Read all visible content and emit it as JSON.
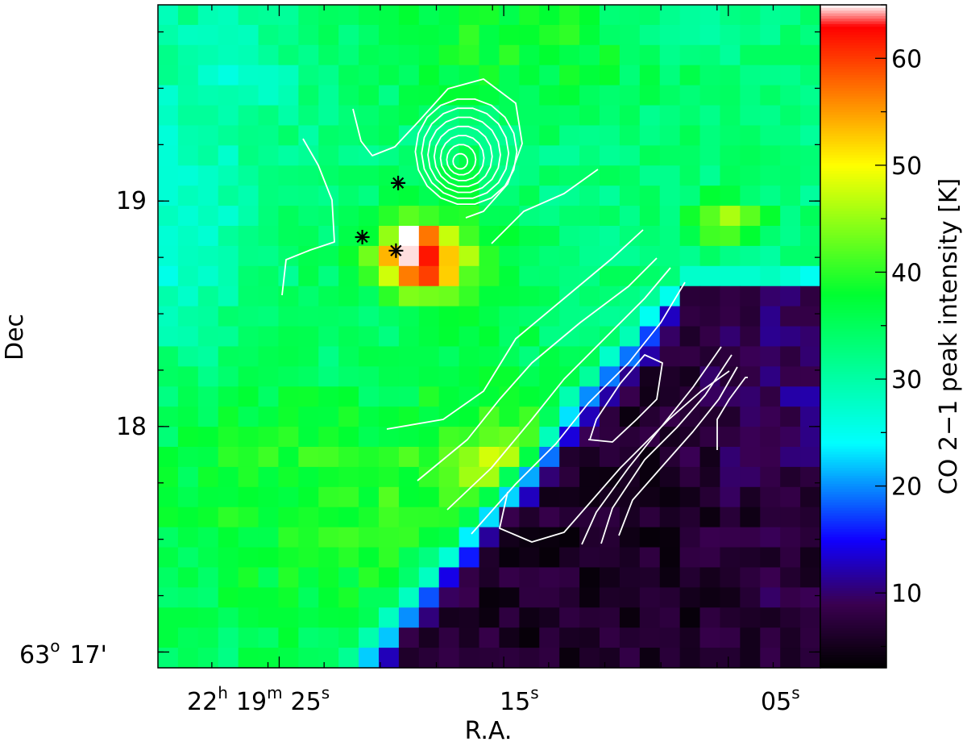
{
  "chart_data": {
    "type": "heatmap",
    "xlabel": "R.A.",
    "ylabel": "Dec",
    "colorbar_label": "CO 2−1 peak intensity [K]",
    "colorbar_ticks": [
      10,
      20,
      30,
      40,
      50,
      60
    ],
    "colorbar_range": [
      3,
      65
    ],
    "x_ticks": [
      {
        "value": 25,
        "h": "22",
        "m": "19",
        "s": "25"
      },
      {
        "value": 15,
        "s": "15"
      },
      {
        "value": 5,
        "s": "05"
      }
    ],
    "x_range_seconds": [
      30.4,
      0.9
    ],
    "y_ticks": [
      {
        "value": 17,
        "deg": "63",
        "min": "17'"
      },
      {
        "value": 18,
        "label": "18"
      },
      {
        "value": 19,
        "label": "19"
      }
    ],
    "y_range_arcmin": [
      16.93,
      19.87
    ],
    "grid": false,
    "stars": [
      {
        "ra": 19.7,
        "dec": 19.08
      },
      {
        "ra": 21.3,
        "dec": 18.84
      },
      {
        "ra": 19.8,
        "dec": 18.78
      }
    ],
    "colormap": [
      "#000000",
      "#3a0050",
      "#1000ff",
      "#00ffff",
      "#00ff30",
      "#ffff00",
      "#ff0000",
      "#ffffff"
    ]
  }
}
